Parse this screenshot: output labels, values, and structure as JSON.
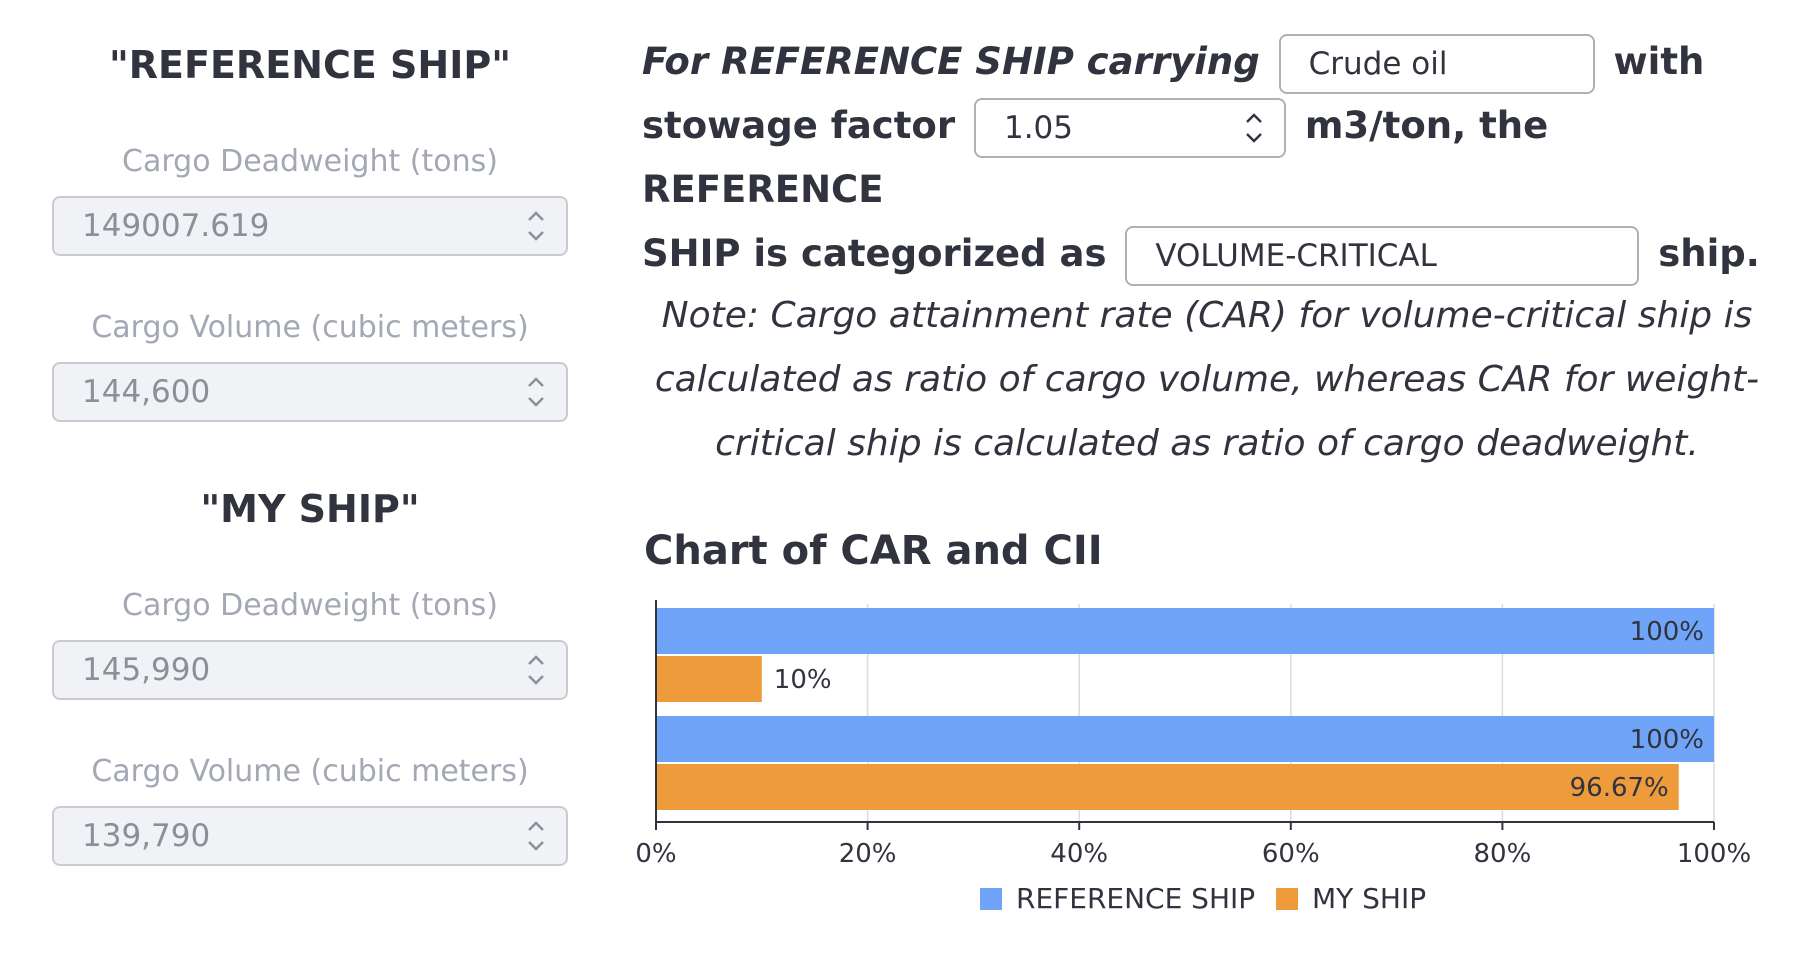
{
  "reference_ship": {
    "title": "\"REFERENCE SHIP\"",
    "deadweight_label": "Cargo Deadweight (tons)",
    "deadweight_value": "149007.619",
    "volume_label": "Cargo Volume (cubic meters)",
    "volume_value": "144,600"
  },
  "my_ship": {
    "title": "\"MY SHIP\"",
    "deadweight_label": "Cargo Deadweight (tons)",
    "deadweight_value": "145,990",
    "volume_label": "Cargo Volume (cubic meters)",
    "volume_value": "139,790"
  },
  "sentence": {
    "part1": "For REFERENCE SHIP carrying",
    "cargo_type": "Crude oil",
    "part2": "with",
    "part3": "stowage factor",
    "stowage_factor": "1.05",
    "part4": "m3/ton, the REFERENCE",
    "part5": "SHIP is categorized as",
    "category": "VOLUME-CRITICAL",
    "part6": "ship."
  },
  "note": "Note: Cargo attainment rate (CAR) for volume-critical ship is calculated as ratio of cargo volume, whereas CAR for weight-critical ship is calculated as ratio of cargo deadweight.",
  "chart_title": "Chart of CAR and CII",
  "colors": {
    "reference_ship": "#6fa4f8",
    "my_ship": "#ee9b3c"
  },
  "chart_data": {
    "type": "bar",
    "orientation": "horizontal",
    "title": "Chart of CAR and CII",
    "categories": [
      "",
      ""
    ],
    "series": [
      {
        "name": "REFERENCE SHIP",
        "values": [
          100,
          100
        ],
        "labels": [
          "100%",
          "100%"
        ]
      },
      {
        "name": "MY SHIP",
        "values": [
          10,
          96.67
        ],
        "labels": [
          "10%",
          "96.67%"
        ]
      }
    ],
    "xlim": [
      0,
      100
    ],
    "xticks": [
      "0%",
      "20%",
      "40%",
      "60%",
      "80%",
      "100%"
    ],
    "grid": true,
    "legend": "bottom"
  }
}
